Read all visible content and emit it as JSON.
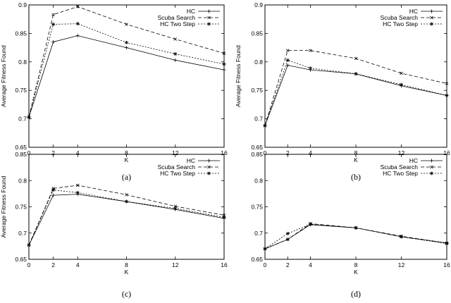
{
  "chart_data": [
    {
      "type": "line",
      "caption": "(a)",
      "xlabel": "K",
      "ylabel": "Average Fitness Found",
      "x": [
        0,
        2,
        4,
        8,
        12,
        16
      ],
      "xticks": [
        "0",
        "2",
        "4",
        "8",
        "12",
        "16"
      ],
      "xlim": [
        0,
        16
      ],
      "ylim": [
        0.65,
        0.9
      ],
      "yticks": [
        "0.65",
        "0.7",
        "0.75",
        "0.8",
        "0.85",
        "0.9"
      ],
      "grid": false,
      "legend_position": "top-right",
      "series": [
        {
          "name": "HC",
          "values": [
            0.703,
            0.835,
            0.846,
            0.825,
            0.803,
            0.786
          ]
        },
        {
          "name": "Scuba Search",
          "values": [
            0.703,
            0.883,
            0.897,
            0.866,
            0.84,
            0.815
          ]
        },
        {
          "name": "HC Two Step",
          "values": [
            0.703,
            0.866,
            0.867,
            0.834,
            0.814,
            0.796
          ]
        }
      ]
    },
    {
      "type": "line",
      "caption": "(b)",
      "xlabel": "K",
      "ylabel": "Average Fitness Found",
      "x": [
        0,
        2,
        4,
        8,
        12,
        16
      ],
      "xticks": [
        "0",
        "2",
        "4",
        "8",
        "12",
        "16"
      ],
      "xlim": [
        0,
        16
      ],
      "ylim": [
        0.65,
        0.9
      ],
      "yticks": [
        "0.65",
        "0.7",
        "0.75",
        "0.8",
        "0.85",
        "0.9"
      ],
      "grid": false,
      "legend_position": "top-right",
      "series": [
        {
          "name": "HC",
          "values": [
            0.688,
            0.794,
            0.786,
            0.779,
            0.758,
            0.741
          ]
        },
        {
          "name": "Scuba Search",
          "values": [
            0.688,
            0.82,
            0.82,
            0.806,
            0.78,
            0.762
          ]
        },
        {
          "name": "HC Two Step",
          "values": [
            0.688,
            0.803,
            0.789,
            0.779,
            0.76,
            0.741
          ]
        }
      ]
    },
    {
      "type": "line",
      "caption": "(c)",
      "xlabel": "K",
      "ylabel": "Average Fitness Found",
      "x": [
        0,
        2,
        4,
        8,
        12,
        16
      ],
      "xticks": [
        "0",
        "2",
        "4",
        "8",
        "12",
        "16"
      ],
      "xlim": [
        0,
        16
      ],
      "ylim": [
        0.65,
        0.85
      ],
      "yticks": [
        "0.65",
        "0.7",
        "0.75",
        "0.8",
        "0.85"
      ],
      "grid": false,
      "legend_position": "top-right",
      "series": [
        {
          "name": "HC",
          "values": [
            0.677,
            0.772,
            0.774,
            0.76,
            0.745,
            0.728
          ]
        },
        {
          "name": "Scuba Search",
          "values": [
            0.677,
            0.785,
            0.791,
            0.773,
            0.751,
            0.734
          ]
        },
        {
          "name": "HC Two Step",
          "values": [
            0.677,
            0.782,
            0.777,
            0.76,
            0.747,
            0.73
          ]
        }
      ]
    },
    {
      "type": "line",
      "caption": "(d)",
      "xlabel": "K",
      "ylabel": "",
      "x": [
        0,
        2,
        4,
        8,
        12,
        16
      ],
      "xticks": [
        "0",
        "2",
        "4",
        "8",
        "12",
        "16"
      ],
      "xlim": [
        0,
        16
      ],
      "ylim": [
        0.65,
        0.85
      ],
      "yticks": [
        "0.65",
        "0.7",
        "0.75",
        "0.8",
        "0.85"
      ],
      "grid": false,
      "legend_position": "top-right",
      "series": [
        {
          "name": "HC",
          "values": [
            0.67,
            0.688,
            0.716,
            0.71,
            0.693,
            0.681
          ]
        },
        {
          "name": "Scuba Search",
          "values": [
            0.67,
            0.688,
            0.718,
            0.71,
            0.694,
            0.681
          ]
        },
        {
          "name": "HC Two Step",
          "values": [
            0.67,
            0.699,
            0.717,
            0.71,
            0.693,
            0.68
          ]
        }
      ]
    }
  ]
}
